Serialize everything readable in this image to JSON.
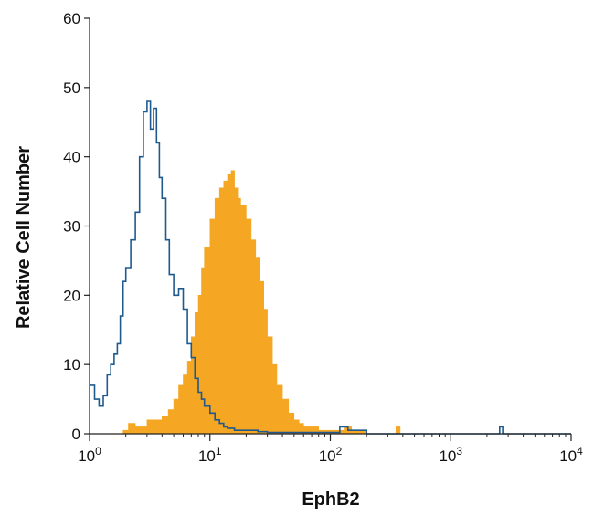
{
  "chart_data": {
    "type": "area",
    "title": "",
    "xlabel": "EphB2",
    "ylabel": "Relative Cell Number",
    "xscale": "log",
    "xlim": [
      1,
      10000
    ],
    "ylim": [
      0,
      60
    ],
    "yticks": [
      0,
      10,
      20,
      30,
      40,
      50,
      60
    ],
    "xticks": [
      {
        "base": "10",
        "exp": "0",
        "value": 1
      },
      {
        "base": "10",
        "exp": "1",
        "value": 10
      },
      {
        "base": "10",
        "exp": "2",
        "value": 100
      },
      {
        "base": "10",
        "exp": "3",
        "value": 1000
      },
      {
        "base": "10",
        "exp": "4",
        "value": 10000
      }
    ],
    "grid": false,
    "legend": "none",
    "series": [
      {
        "style": "filled",
        "color": "#f5a623",
        "x": [
          1.0,
          1.6,
          1.9,
          2.1,
          2.4,
          3.0,
          3.5,
          4.0,
          4.5,
          5.0,
          5.5,
          6.0,
          6.5,
          7.0,
          7.5,
          8.0,
          8.5,
          9.0,
          10.0,
          11.0,
          12.0,
          13.0,
          14.0,
          15.0,
          16.0,
          17.0,
          18.0,
          20.0,
          22.0,
          24.0,
          26.0,
          28.0,
          30.0,
          33.0,
          36.0,
          40.0,
          45.0,
          50.0,
          55.0,
          60.0,
          70.0,
          80.0,
          95.0,
          110.0,
          130.0,
          150.0,
          200.0,
          300.0,
          350.0,
          380.0,
          500.0,
          1000.0,
          3000.0,
          10000.0
        ],
        "y": [
          0,
          0,
          0.5,
          1.5,
          1.0,
          2.0,
          2.0,
          2.5,
          3.5,
          5.0,
          7.0,
          8.5,
          10.5,
          14.0,
          17.5,
          20.0,
          24.0,
          27.0,
          31.0,
          34.0,
          35.5,
          36.5,
          37.5,
          38.0,
          35.5,
          34.0,
          33.0,
          31.0,
          28.0,
          25.5,
          22.0,
          18.0,
          14.0,
          10.0,
          7.0,
          5.0,
          3.0,
          2.0,
          1.5,
          1.0,
          1.0,
          0.5,
          0.5,
          0.5,
          1.0,
          0.5,
          0,
          0,
          1.0,
          0,
          0,
          0,
          0,
          0
        ]
      },
      {
        "style": "line",
        "color": "#1f5a8e",
        "x": [
          1.0,
          1.1,
          1.2,
          1.3,
          1.4,
          1.5,
          1.6,
          1.7,
          1.8,
          1.9,
          2.0,
          2.2,
          2.4,
          2.6,
          2.8,
          3.0,
          3.2,
          3.4,
          3.6,
          3.8,
          4.0,
          4.3,
          4.6,
          5.0,
          5.5,
          6.0,
          6.5,
          7.0,
          7.5,
          8.0,
          8.5,
          9.0,
          10.0,
          11.0,
          12.0,
          13.0,
          14.0,
          16.0,
          18.0,
          20.0,
          25.0,
          30.0,
          40.0,
          60.0,
          100.0,
          120.0,
          140.0,
          200.0,
          1000.0,
          2400.0,
          2550.0,
          2700.0,
          3000.0,
          10000.0
        ],
        "y": [
          7.0,
          5.0,
          4.0,
          5.5,
          8.5,
          10.0,
          11.5,
          13.0,
          17.0,
          22.0,
          24.0,
          28.0,
          32.0,
          40.0,
          46.5,
          48.0,
          44.0,
          47.0,
          42.0,
          37.0,
          34.0,
          28.0,
          23.0,
          20.0,
          21.0,
          18.0,
          13.0,
          11.0,
          8.0,
          6.0,
          5.0,
          4.0,
          3.0,
          2.0,
          1.5,
          1.0,
          0.8,
          0.5,
          0.5,
          0.5,
          0.3,
          0.2,
          0.2,
          0.2,
          0.2,
          1.0,
          0.5,
          0,
          0,
          0,
          1.0,
          0,
          0,
          0
        ]
      }
    ]
  }
}
